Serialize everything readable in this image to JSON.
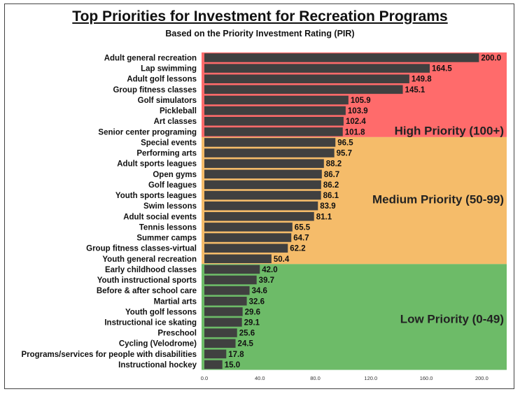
{
  "chart_data": {
    "type": "bar",
    "orientation": "horizontal",
    "title": "Top Priorities for Investment for Recreation Programs",
    "subtitle": "Based on the Priority Investment Rating (PIR)",
    "categories": [
      "Adult general recreation",
      "Lap swimming",
      "Adult golf lessons",
      "Group fitness classes",
      "Golf simulators",
      "Pickleball",
      "Art classes",
      "Senior center programing",
      "Special events",
      "Performing arts",
      "Adult sports leagues",
      "Open gyms",
      "Golf leagues",
      "Youth sports leagues",
      "Swim lessons",
      "Adult social events",
      "Tennis lessons",
      "Summer camps",
      "Group fitness classes-virtual",
      "Youth general recreation",
      "Early childhood classes",
      "Youth instructional sports",
      "Before & after school care",
      "Martial arts",
      "Youth golf lessons",
      "Instructional ice skating",
      "Preschool",
      "Cycling (Velodrome)",
      "Programs/services for people with disabilities",
      "Instructional hockey"
    ],
    "values": [
      200.0,
      164.5,
      149.8,
      145.1,
      105.9,
      103.9,
      102.4,
      101.8,
      96.5,
      95.7,
      88.2,
      86.7,
      86.2,
      86.1,
      83.9,
      81.1,
      65.5,
      64.7,
      62.2,
      50.4,
      42.0,
      39.7,
      34.6,
      32.6,
      29.6,
      29.1,
      25.6,
      24.5,
      17.8,
      15.0
    ],
    "value_labels": [
      "200.0",
      "164.5",
      "149.8",
      "145.1",
      "105.9",
      "103.9",
      "102.4",
      "101.8",
      "96.5",
      "95.7",
      "88.2",
      "86.7",
      "86.2",
      "86.1",
      "83.9",
      "81.1",
      "65.5",
      "64.7",
      "62.2",
      "50.4",
      "42.0",
      "39.7",
      "34.6",
      "32.6",
      "29.6",
      "29.1",
      "25.6",
      "24.5",
      "17.8",
      "15.0"
    ],
    "xlim": [
      0,
      220
    ],
    "xticks": [
      0,
      40,
      80,
      120,
      160,
      200
    ],
    "xtick_labels": [
      "0.0",
      "40.0",
      "80.0",
      "120.0",
      "160.0",
      "200.0"
    ],
    "xlabel": "",
    "ylabel": "",
    "grid": false,
    "bar_color": "#404040",
    "zones": [
      {
        "label": "High Priority (100+)",
        "from_index": 0,
        "to_index": 7,
        "color": "#ff6b6b"
      },
      {
        "label": "Medium Priority (50-99)",
        "from_index": 8,
        "to_index": 19,
        "color": "#f5bc6a"
      },
      {
        "label": "Low Priority (0-49)",
        "from_index": 20,
        "to_index": 29,
        "color": "#6dbb68"
      }
    ]
  }
}
